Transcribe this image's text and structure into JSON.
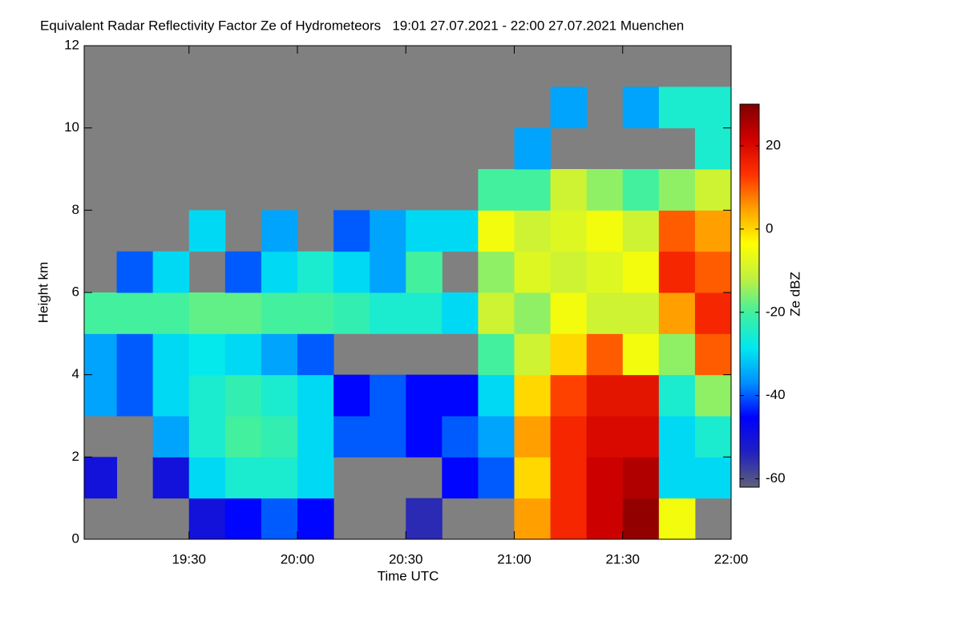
{
  "chart_data": {
    "type": "heatmap",
    "title": "Equivalent Radar Reflectivity Factor Ze of Hydrometeors   19:01 27.07.2021 - 22:00 27.07.2021 Muenchen",
    "x_label": "Time UTC",
    "y_label": "Height km",
    "colorbar_label": "Ze dBZ",
    "xlim": [
      1141,
      1320
    ],
    "xticks": [
      {
        "value": 1170,
        "label": "19:30"
      },
      {
        "value": 1200,
        "label": "20:00"
      },
      {
        "value": 1230,
        "label": "20:30"
      },
      {
        "value": 1260,
        "label": "21:00"
      },
      {
        "value": 1290,
        "label": "21:30"
      },
      {
        "value": 1320,
        "label": "22:00"
      }
    ],
    "ylim": [
      0,
      12
    ],
    "yticks": [
      0,
      2,
      4,
      6,
      8,
      10,
      12
    ],
    "clim": [
      -62,
      30
    ],
    "cticks": [
      -60,
      -40,
      -20,
      0,
      20
    ],
    "background": "#808080",
    "colormap": [
      "#606078",
      "#2020c0",
      "#0000ff",
      "#0090ff",
      "#00e8f0",
      "#40f0a0",
      "#c0f040",
      "#ffff00",
      "#ffa000",
      "#ff3000",
      "#d00000",
      "#800000"
    ],
    "xbins": [
      1140,
      1150,
      1160,
      1170,
      1180,
      1190,
      1200,
      1210,
      1220,
      1230,
      1240,
      1250,
      1260,
      1270,
      1280,
      1290,
      1300,
      1310,
      1320
    ],
    "ybins": [
      0,
      1,
      2,
      3,
      4,
      5,
      6,
      7,
      8,
      9,
      10,
      11,
      12
    ],
    "values": [
      [
        null,
        null,
        null,
        -50,
        -45,
        -40,
        -45,
        null,
        null,
        -55,
        null,
        null,
        5,
        15,
        22,
        28,
        -5,
        null
      ],
      [
        -50,
        null,
        -50,
        -30,
        -25,
        -25,
        -30,
        null,
        null,
        null,
        -45,
        -40,
        0,
        15,
        22,
        25,
        -30,
        -30
      ],
      [
        null,
        null,
        -35,
        -25,
        -20,
        -22,
        -30,
        -40,
        -40,
        -45,
        -40,
        -35,
        5,
        15,
        20,
        20,
        -30,
        -25
      ],
      [
        -35,
        -40,
        -30,
        -25,
        -22,
        -25,
        -30,
        -45,
        -40,
        -45,
        -45,
        -30,
        0,
        12,
        18,
        18,
        -25,
        -15
      ],
      [
        -35,
        -40,
        -30,
        -28,
        -30,
        -35,
        -40,
        null,
        null,
        null,
        null,
        -20,
        -10,
        0,
        10,
        -5,
        -15,
        10
      ],
      [
        -20,
        -20,
        -20,
        -18,
        -18,
        -20,
        -20,
        -22,
        -25,
        -25,
        -30,
        -10,
        -15,
        -5,
        -10,
        -10,
        5,
        15
      ],
      [
        null,
        -40,
        -30,
        null,
        -40,
        -30,
        -25,
        -30,
        -35,
        -20,
        null,
        -15,
        -8,
        -10,
        -8,
        -5,
        15,
        10
      ],
      [
        null,
        null,
        null,
        -30,
        null,
        -35,
        null,
        -40,
        -35,
        -30,
        -30,
        -5,
        -10,
        -8,
        -5,
        -10,
        10,
        5
      ],
      [
        null,
        null,
        null,
        null,
        null,
        null,
        null,
        null,
        null,
        null,
        null,
        -20,
        -20,
        -10,
        -15,
        -20,
        -15,
        -10
      ],
      [
        null,
        null,
        null,
        null,
        null,
        null,
        null,
        null,
        null,
        null,
        null,
        null,
        -35,
        null,
        null,
        null,
        null,
        -25
      ],
      [
        null,
        null,
        null,
        null,
        null,
        null,
        null,
        null,
        null,
        null,
        null,
        null,
        null,
        -35,
        null,
        -35,
        -25,
        -25
      ],
      [
        null,
        null,
        null,
        null,
        null,
        null,
        null,
        null,
        null,
        null,
        null,
        null,
        null,
        null,
        null,
        null,
        null,
        null
      ]
    ]
  }
}
